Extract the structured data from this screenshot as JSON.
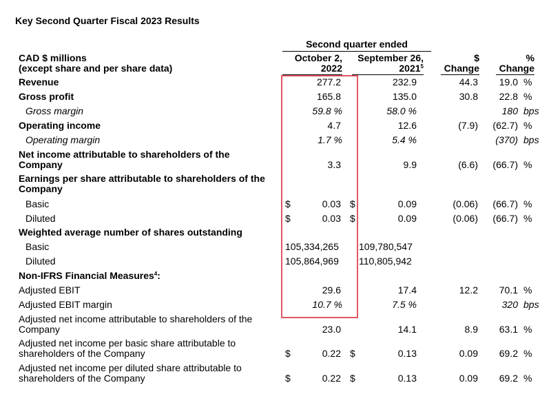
{
  "title": "Key Second Quarter Fiscal 2023 Results",
  "header": {
    "group": "Second quarter ended",
    "label_line1": "CAD $ millions",
    "label_line2": "(except share and per share data)",
    "col1_line1": "October 2,",
    "col1_line2": "2022",
    "col2_line1": "September 26,",
    "col2_line2": "2021",
    "col2_sup": "5",
    "col3_line1": "$",
    "col3_line2": "Change",
    "col4_line1": "%",
    "col4_line2": "Change"
  },
  "rows": [
    {
      "label": "Revenue",
      "v1": "277.2",
      "v2": "232.9",
      "change": "44.3",
      "pct": "19.0",
      "unit": "%"
    },
    {
      "label": "Gross profit",
      "v1": "165.8",
      "v2": "135.0",
      "change": "30.8",
      "pct": "22.8",
      "unit": "%"
    },
    {
      "label": "Gross margin",
      "v1": "59.8 %",
      "v2": "58.0 %",
      "pct": "180",
      "unit": "bps"
    },
    {
      "label": "Operating income",
      "v1": "4.7",
      "v2": "12.6",
      "change": "(7.9)",
      "pct": "(62.7)",
      "unit": "%"
    },
    {
      "label": "Operating margin",
      "v1": "1.7 %",
      "v2": "5.4 %",
      "pct": "(370)",
      "unit": "bps"
    },
    {
      "label_line1": "Net income attributable to shareholders of the",
      "label_line2": "Company",
      "v1": "3.3",
      "v2": "9.9",
      "change": "(6.6)",
      "pct": "(66.7)",
      "unit": "%"
    },
    {
      "label_line1": "Earnings per share attributable to shareholders of the",
      "label_line2": "Company"
    },
    {
      "label": "Basic",
      "dollar": "$",
      "v1": "0.03",
      "v2": "0.09",
      "change": "(0.06)",
      "pct": "(66.7)",
      "unit": "%"
    },
    {
      "label": "Diluted",
      "dollar": "$",
      "v1": "0.03",
      "v2": "0.09",
      "change": "(0.06)",
      "pct": "(66.7)",
      "unit": "%"
    },
    {
      "label": "Weighted average number of shares outstanding"
    },
    {
      "label": "Basic",
      "v1": "105,334,265",
      "v2": "109,780,547"
    },
    {
      "label": "Diluted",
      "v1": "105,864,969",
      "v2": "110,805,942"
    },
    {
      "label": "Non-IFRS Financial Measures",
      "sup": "4",
      "suffix": ":"
    },
    {
      "label": "Adjusted EBIT",
      "v1": "29.6",
      "v2": "17.4",
      "change": "12.2",
      "pct": "70.1",
      "unit": "%"
    },
    {
      "label": "Adjusted EBIT margin",
      "v1": "10.7 %",
      "v2": "7.5 %",
      "pct": "320",
      "unit": "bps"
    },
    {
      "label_line1": "Adjusted net income attributable to shareholders of the",
      "label_line2": "Company",
      "v1": "23.0",
      "v2": "14.1",
      "change": "8.9",
      "pct": "63.1",
      "unit": "%"
    },
    {
      "label_line1": "Adjusted net income per basic share attributable to",
      "label_line2": "shareholders of the Company",
      "dollar": "$",
      "v1": "0.22",
      "v2": "0.13",
      "change": "0.09",
      "pct": "69.2",
      "unit": "%"
    },
    {
      "label_line1": "Adjusted net income per diluted share attributable to",
      "label_line2": "shareholders of the Company",
      "dollar": "$",
      "v1": "0.22",
      "v2": "0.13",
      "change": "0.09",
      "pct": "69.2",
      "unit": "%"
    }
  ],
  "highlight_color": "#e05563"
}
